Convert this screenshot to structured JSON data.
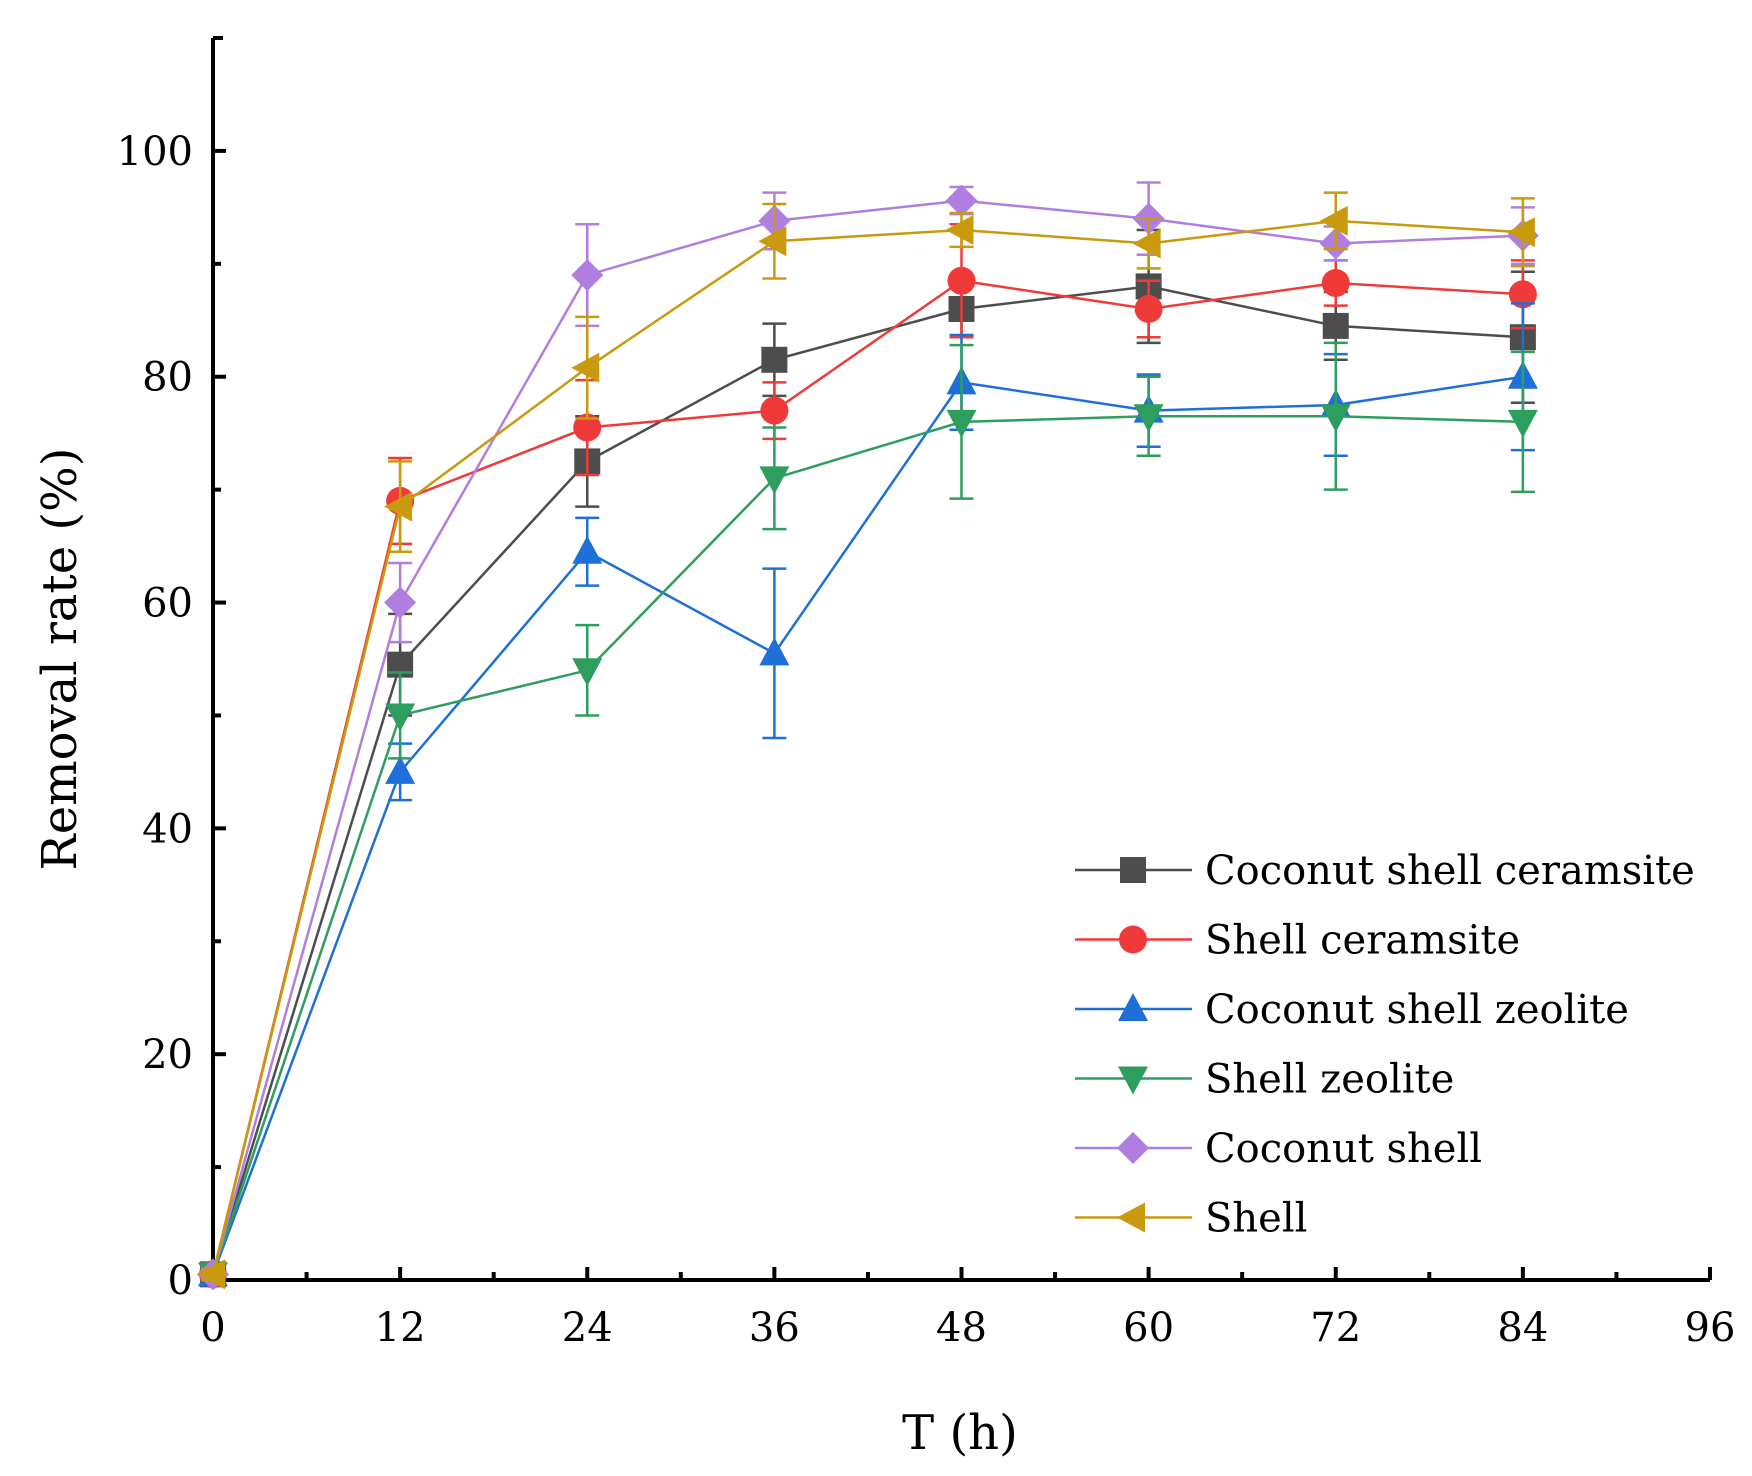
{
  "chart_data": {
    "type": "line",
    "title": "",
    "xlabel": "T (h)",
    "ylabel": "Removal rate (%)",
    "xlim": [
      0,
      96
    ],
    "ylim": [
      0,
      110
    ],
    "xticks": [
      0,
      12,
      24,
      36,
      48,
      60,
      72,
      84,
      96
    ],
    "yticks": [
      0,
      20,
      40,
      60,
      80,
      100
    ],
    "xtick_labels": [
      "0",
      "12",
      "24",
      "36",
      "48",
      "60",
      "72",
      "84",
      "96"
    ],
    "ytick_labels": [
      "0",
      "20",
      "40",
      "60",
      "80",
      "100"
    ],
    "grid": false,
    "legend_position": "bottom-right",
    "x": [
      0,
      12,
      24,
      36,
      48,
      60,
      72,
      84
    ],
    "series": [
      {
        "name": "Coconut shell ceramsite",
        "color": "#4d4d4d",
        "marker": "square",
        "values": [
          0.5,
          54.5,
          72.5,
          81.5,
          86.0,
          88.0,
          84.5,
          83.5
        ],
        "errors": [
          0.5,
          4.5,
          4.0,
          3.2,
          2.5,
          5.0,
          3.0,
          5.8
        ]
      },
      {
        "name": "Shell ceramsite",
        "color": "#f03a3a",
        "marker": "circle",
        "values": [
          0.5,
          69.0,
          75.5,
          77.0,
          88.5,
          86.0,
          88.3,
          87.3
        ],
        "errors": [
          0.5,
          3.8,
          4.2,
          2.5,
          5.0,
          2.5,
          2.0,
          3.0
        ]
      },
      {
        "name": "Coconut shell zeolite",
        "color": "#1f6fd9",
        "marker": "triangle-up",
        "values": [
          0.5,
          45.0,
          64.5,
          55.5,
          79.5,
          77.0,
          77.5,
          80.0
        ],
        "errors": [
          0.5,
          2.5,
          3.0,
          7.5,
          4.2,
          3.2,
          4.5,
          6.5
        ]
      },
      {
        "name": "Shell zeolite",
        "color": "#2e9e5e",
        "marker": "triangle-down",
        "values": [
          0.5,
          50.0,
          54.0,
          71.0,
          76.0,
          76.5,
          76.5,
          76.0
        ],
        "errors": [
          0.5,
          3.8,
          4.0,
          4.5,
          6.8,
          3.5,
          6.5,
          6.2
        ]
      },
      {
        "name": "Coconut shell",
        "color": "#b07ee0",
        "marker": "diamond",
        "values": [
          0.5,
          60.0,
          89.0,
          93.8,
          95.6,
          94.0,
          91.8,
          92.5
        ],
        "errors": [
          0.5,
          3.5,
          4.5,
          2.5,
          1.2,
          3.2,
          1.5,
          2.5
        ]
      },
      {
        "name": "Shell",
        "color": "#c99a0e",
        "marker": "triangle-left",
        "values": [
          0.5,
          68.5,
          80.8,
          92.0,
          93.0,
          91.8,
          93.8,
          92.8
        ],
        "errors": [
          0.5,
          4.0,
          4.5,
          3.3,
          1.5,
          2.2,
          2.5,
          3.0
        ]
      }
    ]
  }
}
